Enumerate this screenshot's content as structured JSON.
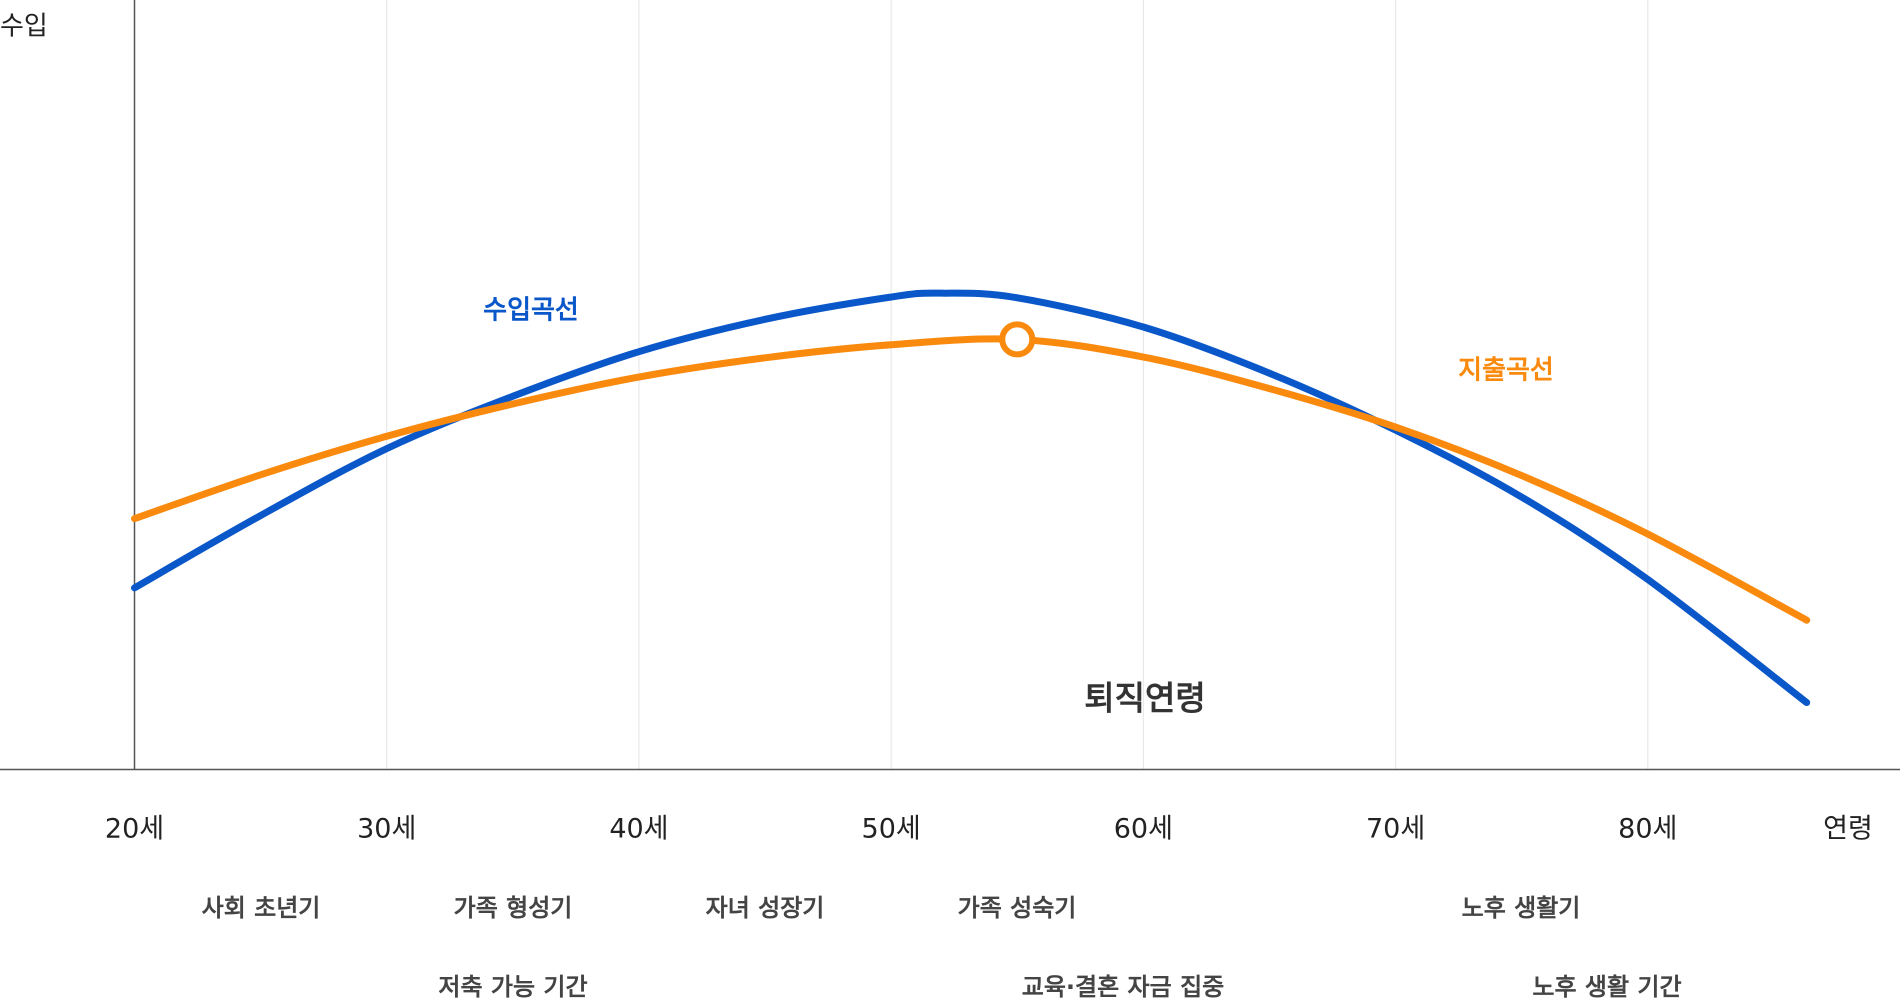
{
  "chart_data": {
    "type": "line",
    "y_label": "수입",
    "x_label": "연령",
    "annotation": "퇴직연령",
    "xlim": [
      20,
      90
    ],
    "ylim": [
      0,
      100
    ],
    "xticks": [
      {
        "value": 20,
        "label": "20세"
      },
      {
        "value": 30,
        "label": "30세"
      },
      {
        "value": 40,
        "label": "40세"
      },
      {
        "value": 50,
        "label": "50세"
      },
      {
        "value": 60,
        "label": "60세"
      },
      {
        "value": 70,
        "label": "70세"
      },
      {
        "value": 80,
        "label": "80세"
      }
    ],
    "grid": true,
    "series": [
      {
        "name": "수입곡선",
        "color": "#0a57c9",
        "x": [
          20,
          25,
          30,
          35,
          40,
          45,
          50,
          52,
          55,
          60,
          65,
          70,
          75,
          80,
          86.3
        ],
        "values": [
          23.6,
          33,
          41.7,
          48.5,
          54.3,
          58.5,
          61.4,
          61.9,
          61.3,
          57.5,
          51.5,
          44.1,
          35.4,
          24.7,
          8.7
        ]
      },
      {
        "name": "지출곡선",
        "color": "#f98a0e",
        "x": [
          20,
          25,
          30,
          35,
          40,
          45,
          50,
          55,
          60,
          65,
          70,
          75,
          80,
          86.3
        ],
        "values": [
          32.6,
          38.3,
          43.3,
          47.5,
          51,
          53.5,
          55.2,
          55.9,
          53.6,
          49.5,
          44.5,
          38.2,
          30.6,
          19.4
        ],
        "marker_index": 7
      }
    ],
    "stages": [
      "사회 초년기",
      "가족 형성기",
      "자녀 성장기",
      "가족 성숙기",
      "노후 생활기"
    ],
    "periods": [
      "저축 가능 기간",
      "교육·결혼 자금 집중",
      "노후 생활 기간"
    ]
  }
}
